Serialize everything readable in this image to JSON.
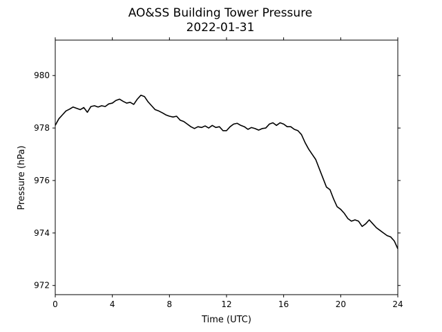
{
  "chart_data": {
    "type": "line",
    "title": "AO&SS Building Tower Pressure",
    "subtitle": "2022-01-31",
    "xlabel": "Time (UTC)",
    "ylabel": "Pressure (hPa)",
    "xlim": [
      0,
      24
    ],
    "ylim": [
      971.65,
      981.35
    ],
    "xticks": [
      0,
      4,
      8,
      12,
      16,
      20,
      24
    ],
    "yticks": [
      972,
      974,
      976,
      978,
      980
    ],
    "xtick_labels": [
      "0",
      "4",
      "8",
      "12",
      "16",
      "20",
      "24"
    ],
    "ytick_labels": [
      "972",
      "974",
      "976",
      "978",
      "980"
    ],
    "grid": false,
    "legend": "none",
    "line_color": "#000000",
    "series": [
      {
        "x": [
          0,
          0.25,
          0.5,
          0.75,
          1.0,
          1.25,
          1.5,
          1.75,
          2.0,
          2.25,
          2.5,
          2.75,
          3.0,
          3.25,
          3.5,
          3.75,
          4.0,
          4.25,
          4.5,
          4.75,
          5.0,
          5.25,
          5.5,
          5.75,
          6.0,
          6.25,
          6.5,
          6.75,
          7.0,
          7.25,
          7.5,
          7.75,
          8.0,
          8.25,
          8.5,
          8.75,
          9.0,
          9.25,
          9.5,
          9.75,
          10.0,
          10.25,
          10.5,
          10.75,
          11.0,
          11.25,
          11.5,
          11.75,
          12.0,
          12.25,
          12.5,
          12.75,
          13.0,
          13.25,
          13.5,
          13.75,
          14.0,
          14.25,
          14.5,
          14.75,
          15.0,
          15.25,
          15.5,
          15.75,
          16.0,
          16.25,
          16.5,
          16.75,
          17.0,
          17.25,
          17.5,
          17.75,
          18.0,
          18.25,
          18.5,
          18.75,
          19.0,
          19.25,
          19.5,
          19.75,
          20.0,
          20.25,
          20.5,
          20.75,
          21.0,
          21.25,
          21.5,
          21.75,
          22.0,
          22.25,
          22.5,
          22.75,
          23.0,
          23.25,
          23.5,
          23.75,
          24.0
        ],
        "values": [
          978.1,
          978.35,
          978.5,
          978.65,
          978.72,
          978.8,
          978.75,
          978.7,
          978.78,
          978.6,
          978.82,
          978.85,
          978.8,
          978.85,
          978.82,
          978.92,
          978.95,
          979.05,
          979.1,
          979.02,
          978.95,
          978.98,
          978.9,
          979.1,
          979.25,
          979.2,
          979.0,
          978.85,
          978.7,
          978.65,
          978.58,
          978.5,
          978.45,
          978.42,
          978.45,
          978.3,
          978.25,
          978.15,
          978.05,
          977.98,
          978.05,
          978.02,
          978.08,
          978.0,
          978.1,
          978.02,
          978.05,
          977.9,
          977.9,
          978.05,
          978.15,
          978.18,
          978.1,
          978.05,
          977.95,
          978.02,
          977.98,
          977.92,
          977.98,
          978.0,
          978.15,
          978.2,
          978.1,
          978.2,
          978.15,
          978.05,
          978.05,
          977.95,
          977.9,
          977.75,
          977.45,
          977.2,
          977.0,
          976.8,
          976.45,
          976.1,
          975.75,
          975.65,
          975.3,
          975.0,
          974.9,
          974.75,
          974.55,
          974.45,
          974.5,
          974.45,
          974.25,
          974.35,
          974.5,
          974.35,
          974.2,
          974.1,
          974.0,
          973.9,
          973.85,
          973.7,
          973.4
        ]
      }
    ]
  }
}
